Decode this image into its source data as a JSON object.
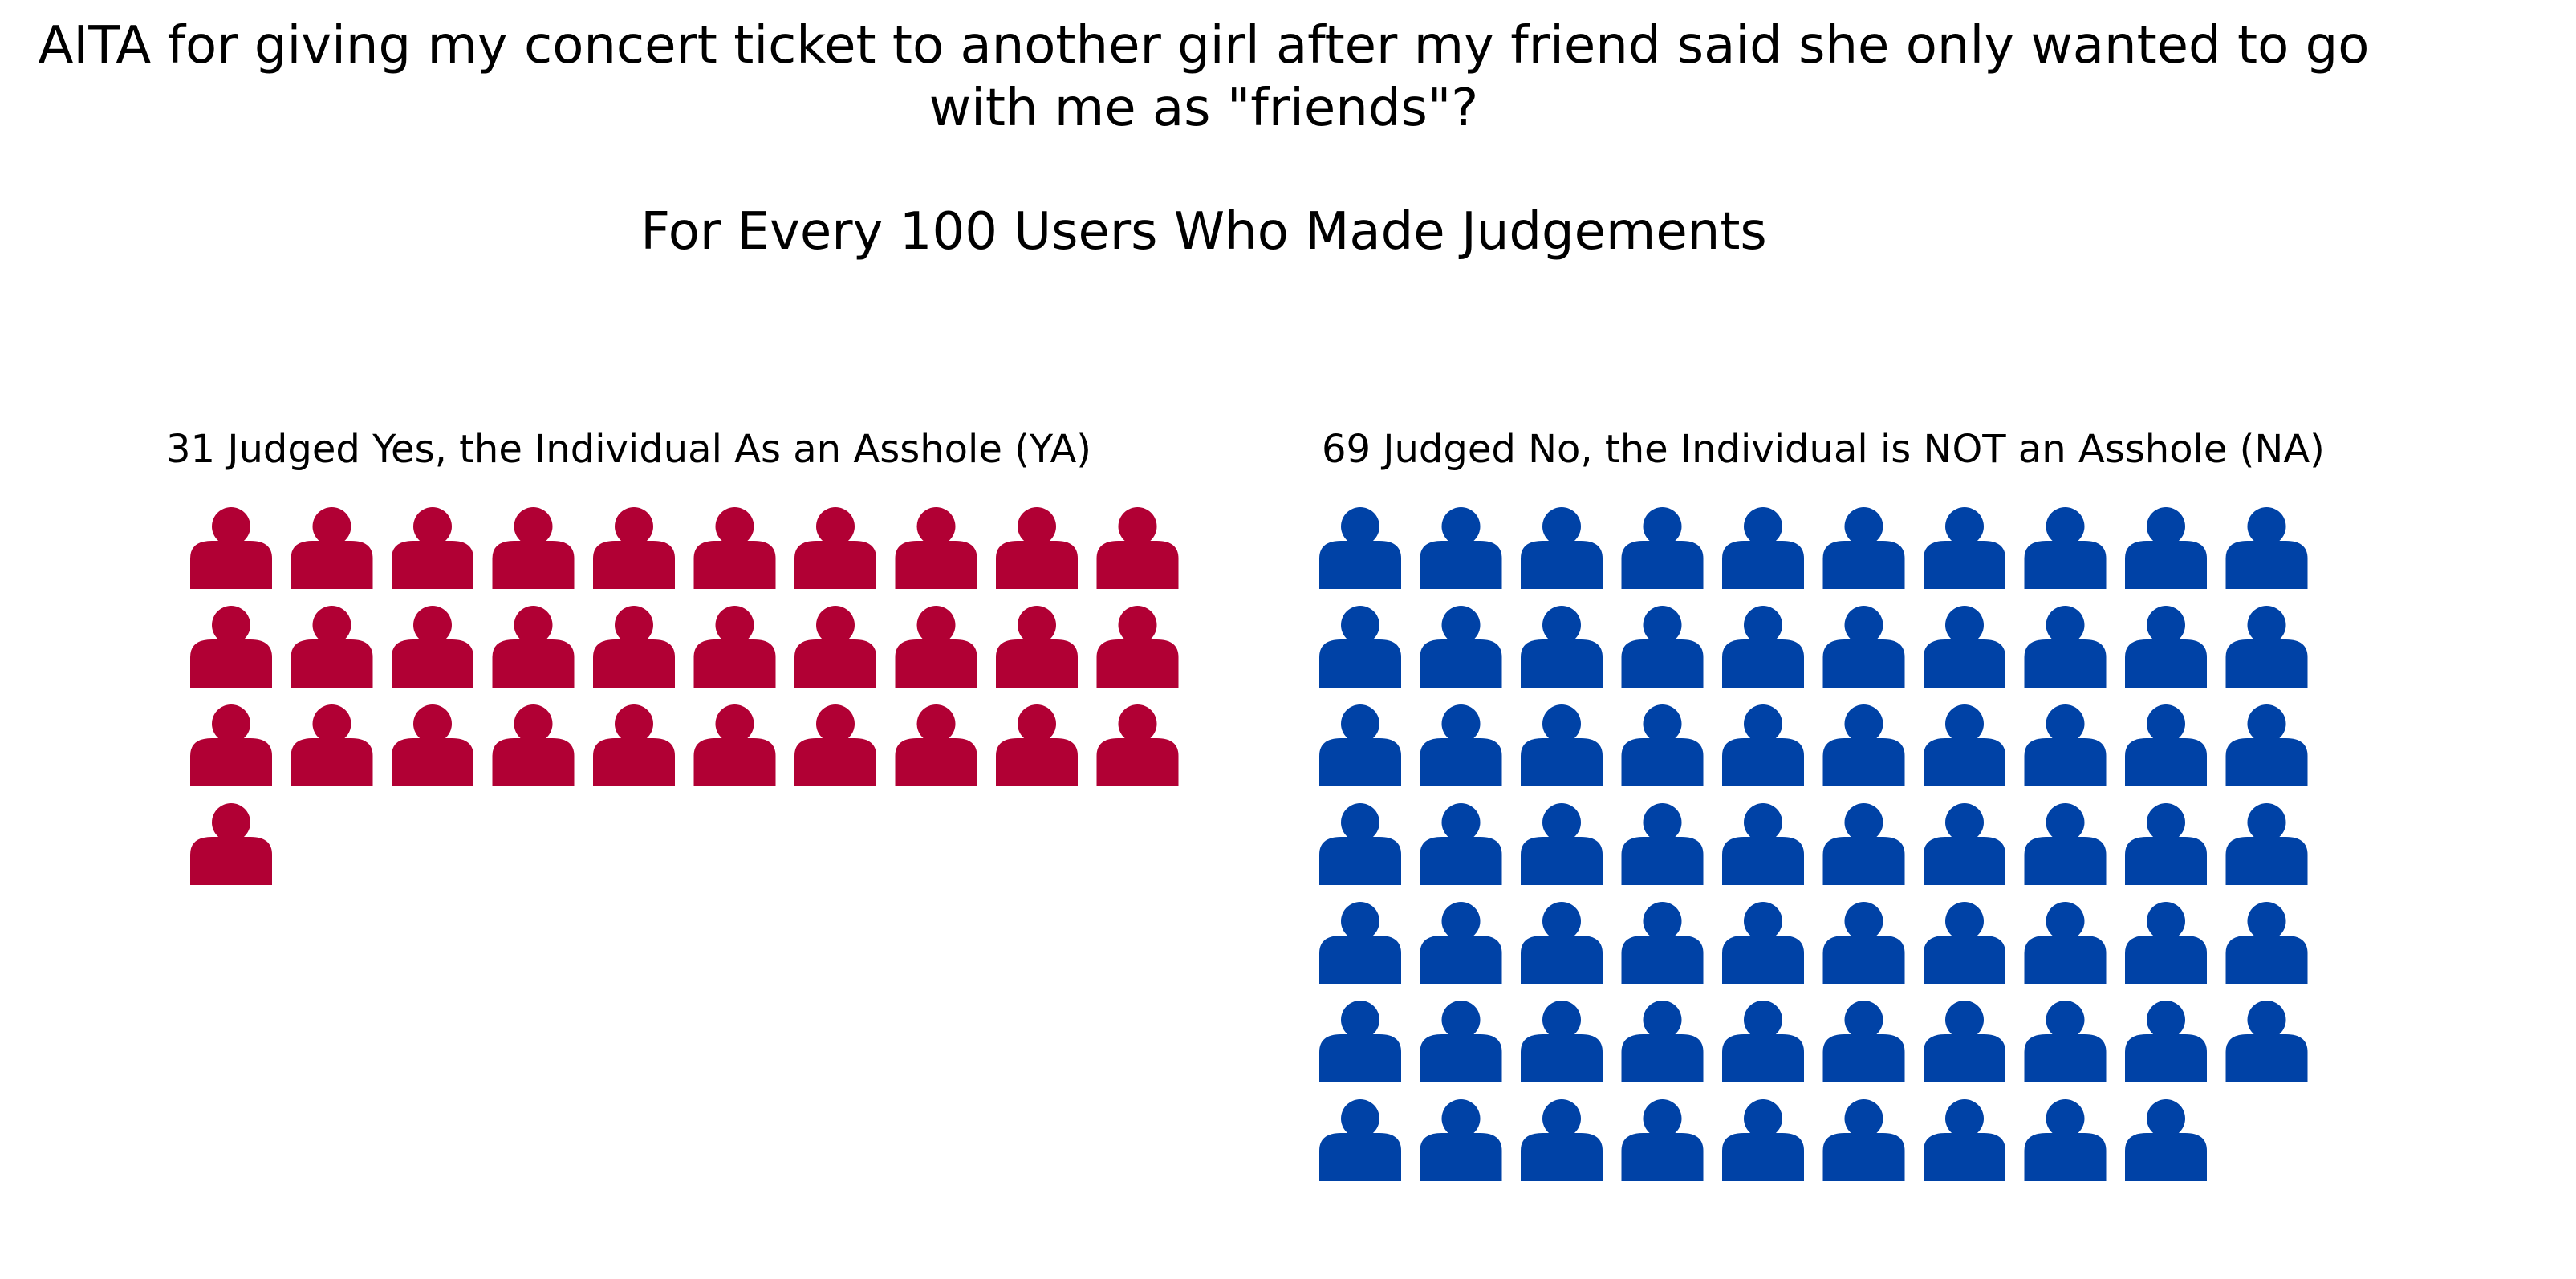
{
  "chart_data": {
    "type": "waffle",
    "title": "AITA for giving my concert ticket to another girl after my friend said she only wanted to go with me as \"friends\"?",
    "subtitle": "For Every 100 Users Who Made Judgements",
    "icon": "person-icon",
    "columns_per_row": 10,
    "panels": [
      {
        "label": "31 Judged Yes, the Individual As an Asshole (YA)",
        "category": "YA",
        "count": 31,
        "color": "#b10034"
      },
      {
        "label": "69 Judged No, the Individual is NOT an Asshole (NA)",
        "category": "NA",
        "count": 69,
        "color": "#0042a6"
      }
    ]
  }
}
